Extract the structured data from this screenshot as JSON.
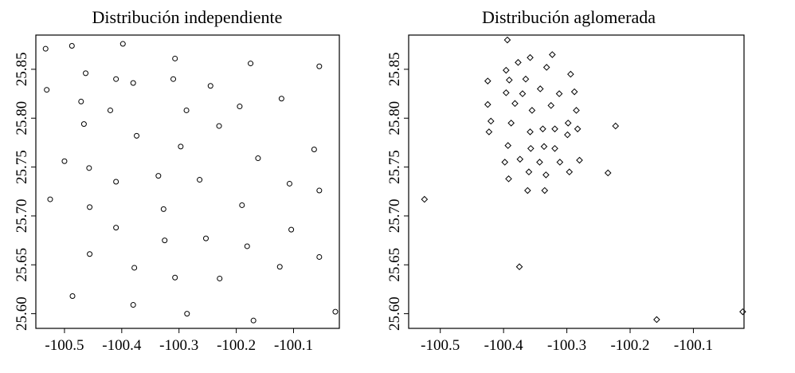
{
  "chart_data": [
    {
      "type": "scatter",
      "title": "Distribución independiente",
      "xlabel": "",
      "ylabel": "",
      "xlim": [
        -100.55,
        -100.02
      ],
      "ylim": [
        25.585,
        25.885
      ],
      "x_ticks": [
        -100.5,
        -100.4,
        -100.3,
        -100.2,
        -100.1
      ],
      "x_tick_labels": [
        "-100.5",
        "-100.4",
        "-100.3",
        "-100.2",
        "-100.1"
      ],
      "y_ticks": [
        25.6,
        25.65,
        25.7,
        25.75,
        25.8,
        25.85
      ],
      "y_tick_labels": [
        "25.60",
        "25.65",
        "25.70",
        "25.75",
        "25.80",
        "25.85"
      ],
      "grid": false,
      "marker": "o",
      "points": [
        {
          "x": -100.533,
          "y": 25.871
        },
        {
          "x": -100.487,
          "y": 25.874
        },
        {
          "x": -100.398,
          "y": 25.876
        },
        {
          "x": -100.307,
          "y": 25.861
        },
        {
          "x": -100.175,
          "y": 25.856
        },
        {
          "x": -100.055,
          "y": 25.853
        },
        {
          "x": -100.463,
          "y": 25.846
        },
        {
          "x": -100.41,
          "y": 25.84
        },
        {
          "x": -100.38,
          "y": 25.836
        },
        {
          "x": -100.31,
          "y": 25.84
        },
        {
          "x": -100.245,
          "y": 25.833
        },
        {
          "x": -100.531,
          "y": 25.829
        },
        {
          "x": -100.471,
          "y": 25.817
        },
        {
          "x": -100.42,
          "y": 25.808
        },
        {
          "x": -100.287,
          "y": 25.808
        },
        {
          "x": -100.194,
          "y": 25.812
        },
        {
          "x": -100.121,
          "y": 25.82
        },
        {
          "x": -100.466,
          "y": 25.794
        },
        {
          "x": -100.23,
          "y": 25.792
        },
        {
          "x": -100.374,
          "y": 25.782
        },
        {
          "x": -100.297,
          "y": 25.771
        },
        {
          "x": -100.064,
          "y": 25.768
        },
        {
          "x": -100.5,
          "y": 25.756
        },
        {
          "x": -100.162,
          "y": 25.759
        },
        {
          "x": -100.457,
          "y": 25.749
        },
        {
          "x": -100.336,
          "y": 25.741
        },
        {
          "x": -100.41,
          "y": 25.735
        },
        {
          "x": -100.264,
          "y": 25.737
        },
        {
          "x": -100.107,
          "y": 25.733
        },
        {
          "x": -100.055,
          "y": 25.726
        },
        {
          "x": -100.525,
          "y": 25.717
        },
        {
          "x": -100.456,
          "y": 25.709
        },
        {
          "x": -100.327,
          "y": 25.707
        },
        {
          "x": -100.19,
          "y": 25.711
        },
        {
          "x": -100.41,
          "y": 25.688
        },
        {
          "x": -100.104,
          "y": 25.686
        },
        {
          "x": -100.325,
          "y": 25.675
        },
        {
          "x": -100.253,
          "y": 25.677
        },
        {
          "x": -100.181,
          "y": 25.669
        },
        {
          "x": -100.456,
          "y": 25.661
        },
        {
          "x": -100.055,
          "y": 25.658
        },
        {
          "x": -100.378,
          "y": 25.647
        },
        {
          "x": -100.124,
          "y": 25.648
        },
        {
          "x": -100.307,
          "y": 25.637
        },
        {
          "x": -100.229,
          "y": 25.636
        },
        {
          "x": -100.486,
          "y": 25.618
        },
        {
          "x": -100.38,
          "y": 25.609
        },
        {
          "x": -100.286,
          "y": 25.6
        },
        {
          "x": -100.027,
          "y": 25.602
        },
        {
          "x": -100.17,
          "y": 25.593
        }
      ]
    },
    {
      "type": "scatter",
      "title": "Distribución aglomerada",
      "xlabel": "",
      "ylabel": "",
      "xlim": [
        -100.55,
        -100.02
      ],
      "ylim": [
        25.585,
        25.885
      ],
      "x_ticks": [
        -100.5,
        -100.4,
        -100.3,
        -100.2,
        -100.1
      ],
      "x_tick_labels": [
        "-100.5",
        "-100.4",
        "-100.3",
        "-100.2",
        "-100.1"
      ],
      "y_ticks": [
        25.6,
        25.65,
        25.7,
        25.75,
        25.8,
        25.85
      ],
      "y_tick_labels": [
        "25.60",
        "25.65",
        "25.70",
        "25.75",
        "25.80",
        "25.85"
      ],
      "grid": false,
      "marker": "diamond",
      "points": [
        {
          "x": -100.394,
          "y": 25.88
        },
        {
          "x": -100.323,
          "y": 25.865
        },
        {
          "x": -100.358,
          "y": 25.862
        },
        {
          "x": -100.377,
          "y": 25.857
        },
        {
          "x": -100.396,
          "y": 25.849
        },
        {
          "x": -100.332,
          "y": 25.852
        },
        {
          "x": -100.425,
          "y": 25.838
        },
        {
          "x": -100.391,
          "y": 25.839
        },
        {
          "x": -100.365,
          "y": 25.84
        },
        {
          "x": -100.294,
          "y": 25.845
        },
        {
          "x": -100.342,
          "y": 25.83
        },
        {
          "x": -100.396,
          "y": 25.826
        },
        {
          "x": -100.37,
          "y": 25.825
        },
        {
          "x": -100.312,
          "y": 25.825
        },
        {
          "x": -100.288,
          "y": 25.827
        },
        {
          "x": -100.425,
          "y": 25.814
        },
        {
          "x": -100.382,
          "y": 25.815
        },
        {
          "x": -100.325,
          "y": 25.813
        },
        {
          "x": -100.355,
          "y": 25.808
        },
        {
          "x": -100.285,
          "y": 25.808
        },
        {
          "x": -100.42,
          "y": 25.797
        },
        {
          "x": -100.388,
          "y": 25.795
        },
        {
          "x": -100.298,
          "y": 25.795
        },
        {
          "x": -100.423,
          "y": 25.786
        },
        {
          "x": -100.358,
          "y": 25.786
        },
        {
          "x": -100.338,
          "y": 25.789
        },
        {
          "x": -100.319,
          "y": 25.789
        },
        {
          "x": -100.283,
          "y": 25.789
        },
        {
          "x": -100.299,
          "y": 25.783
        },
        {
          "x": -100.223,
          "y": 25.792
        },
        {
          "x": -100.393,
          "y": 25.772
        },
        {
          "x": -100.357,
          "y": 25.769
        },
        {
          "x": -100.336,
          "y": 25.771
        },
        {
          "x": -100.319,
          "y": 25.769
        },
        {
          "x": -100.374,
          "y": 25.758
        },
        {
          "x": -100.343,
          "y": 25.755
        },
        {
          "x": -100.311,
          "y": 25.755
        },
        {
          "x": -100.28,
          "y": 25.757
        },
        {
          "x": -100.398,
          "y": 25.755
        },
        {
          "x": -100.36,
          "y": 25.745
        },
        {
          "x": -100.296,
          "y": 25.745
        },
        {
          "x": -100.235,
          "y": 25.744
        },
        {
          "x": -100.392,
          "y": 25.738
        },
        {
          "x": -100.333,
          "y": 25.742
        },
        {
          "x": -100.362,
          "y": 25.726
        },
        {
          "x": -100.335,
          "y": 25.726
        },
        {
          "x": -100.525,
          "y": 25.717
        },
        {
          "x": -100.375,
          "y": 25.648
        },
        {
          "x": -100.158,
          "y": 25.594
        },
        {
          "x": -100.022,
          "y": 25.602
        }
      ]
    }
  ]
}
